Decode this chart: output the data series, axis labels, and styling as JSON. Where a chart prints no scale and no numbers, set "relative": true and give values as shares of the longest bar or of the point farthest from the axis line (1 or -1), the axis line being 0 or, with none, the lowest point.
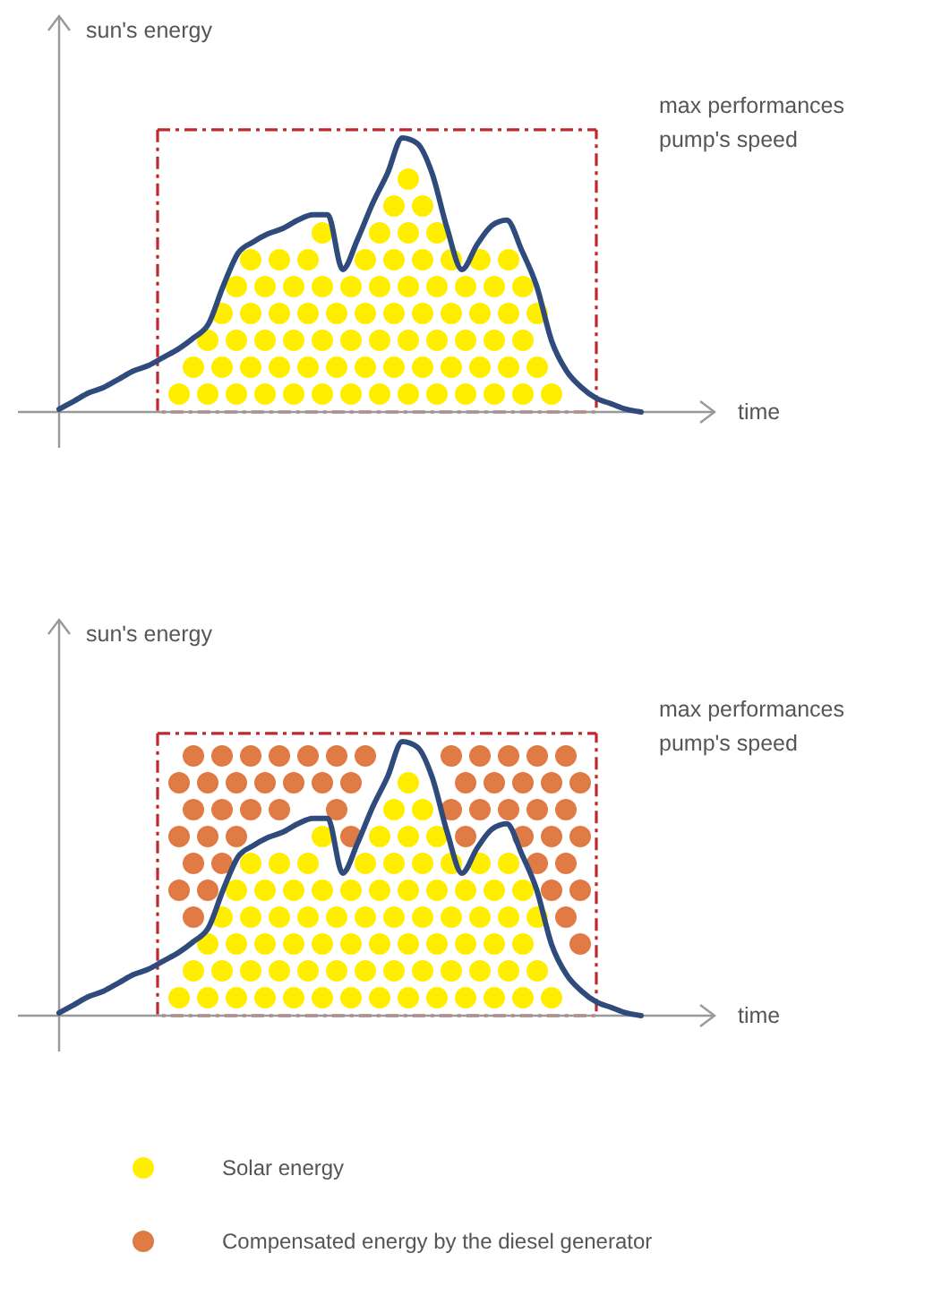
{
  "chart_data": [
    {
      "type": "line",
      "relative": true,
      "xlabel": "time",
      "ylabel": "sun's energy",
      "legend": false,
      "marker": "none",
      "categories": [
        null,
        null,
        null,
        null,
        null,
        null,
        null,
        null,
        null,
        null,
        null,
        null,
        null,
        null,
        null,
        null,
        null,
        null,
        null,
        null,
        null,
        null,
        null,
        null,
        null,
        null,
        null,
        null,
        null,
        null,
        null,
        null,
        null,
        null,
        null,
        null,
        null,
        null,
        null,
        null
      ],
      "series": [
        {
          "color": "#2f4b7c",
          "values": [
            0.01,
            0.04,
            0.07,
            0.09,
            0.12,
            0.15,
            0.17,
            0.2,
            0.23,
            0.27,
            0.32,
            0.46,
            0.58,
            0.62,
            0.65,
            0.67,
            0.7,
            0.72,
            0.72,
            0.52,
            0.63,
            0.76,
            0.87,
            1.0,
            0.98,
            0.87,
            0.67,
            0.52,
            0.61,
            0.68,
            0.7,
            0.59,
            0.46,
            0.26,
            0.15,
            0.09,
            0.05,
            0.03,
            0.01,
            0.0
          ]
        }
      ],
      "ref_lines": [
        {
          "axis": "y",
          "value": 1.03,
          "label": "max performances\npump's speed",
          "color": "#c0282d",
          "line_style": "dashed"
        }
      ]
    },
    {
      "type": "line",
      "relative": true,
      "xlabel": "time",
      "ylabel": "sun's energy",
      "legend": false,
      "marker": "none",
      "categories": [
        null,
        null,
        null,
        null,
        null,
        null,
        null,
        null,
        null,
        null,
        null,
        null,
        null,
        null,
        null,
        null,
        null,
        null,
        null,
        null,
        null,
        null,
        null,
        null,
        null,
        null,
        null,
        null,
        null,
        null,
        null,
        null,
        null,
        null,
        null,
        null,
        null,
        null,
        null,
        null
      ],
      "series": [
        {
          "color": "#2f4b7c",
          "values": [
            0.01,
            0.04,
            0.07,
            0.09,
            0.12,
            0.15,
            0.17,
            0.2,
            0.23,
            0.27,
            0.32,
            0.46,
            0.58,
            0.62,
            0.65,
            0.67,
            0.7,
            0.72,
            0.72,
            0.52,
            0.63,
            0.76,
            0.87,
            1.0,
            0.98,
            0.87,
            0.67,
            0.52,
            0.61,
            0.68,
            0.7,
            0.59,
            0.46,
            0.26,
            0.15,
            0.09,
            0.05,
            0.03,
            0.01,
            0.0
          ]
        }
      ],
      "ref_lines": [
        {
          "axis": "y",
          "value": 1.03,
          "label": "max performances\npump's speed",
          "color": "#c0282d",
          "line_style": "dashed"
        }
      ]
    },
    {
      "type": "other",
      "annotations": [
        "Solar energy",
        "Compensated energy by the diesel generator"
      ]
    }
  ]
}
